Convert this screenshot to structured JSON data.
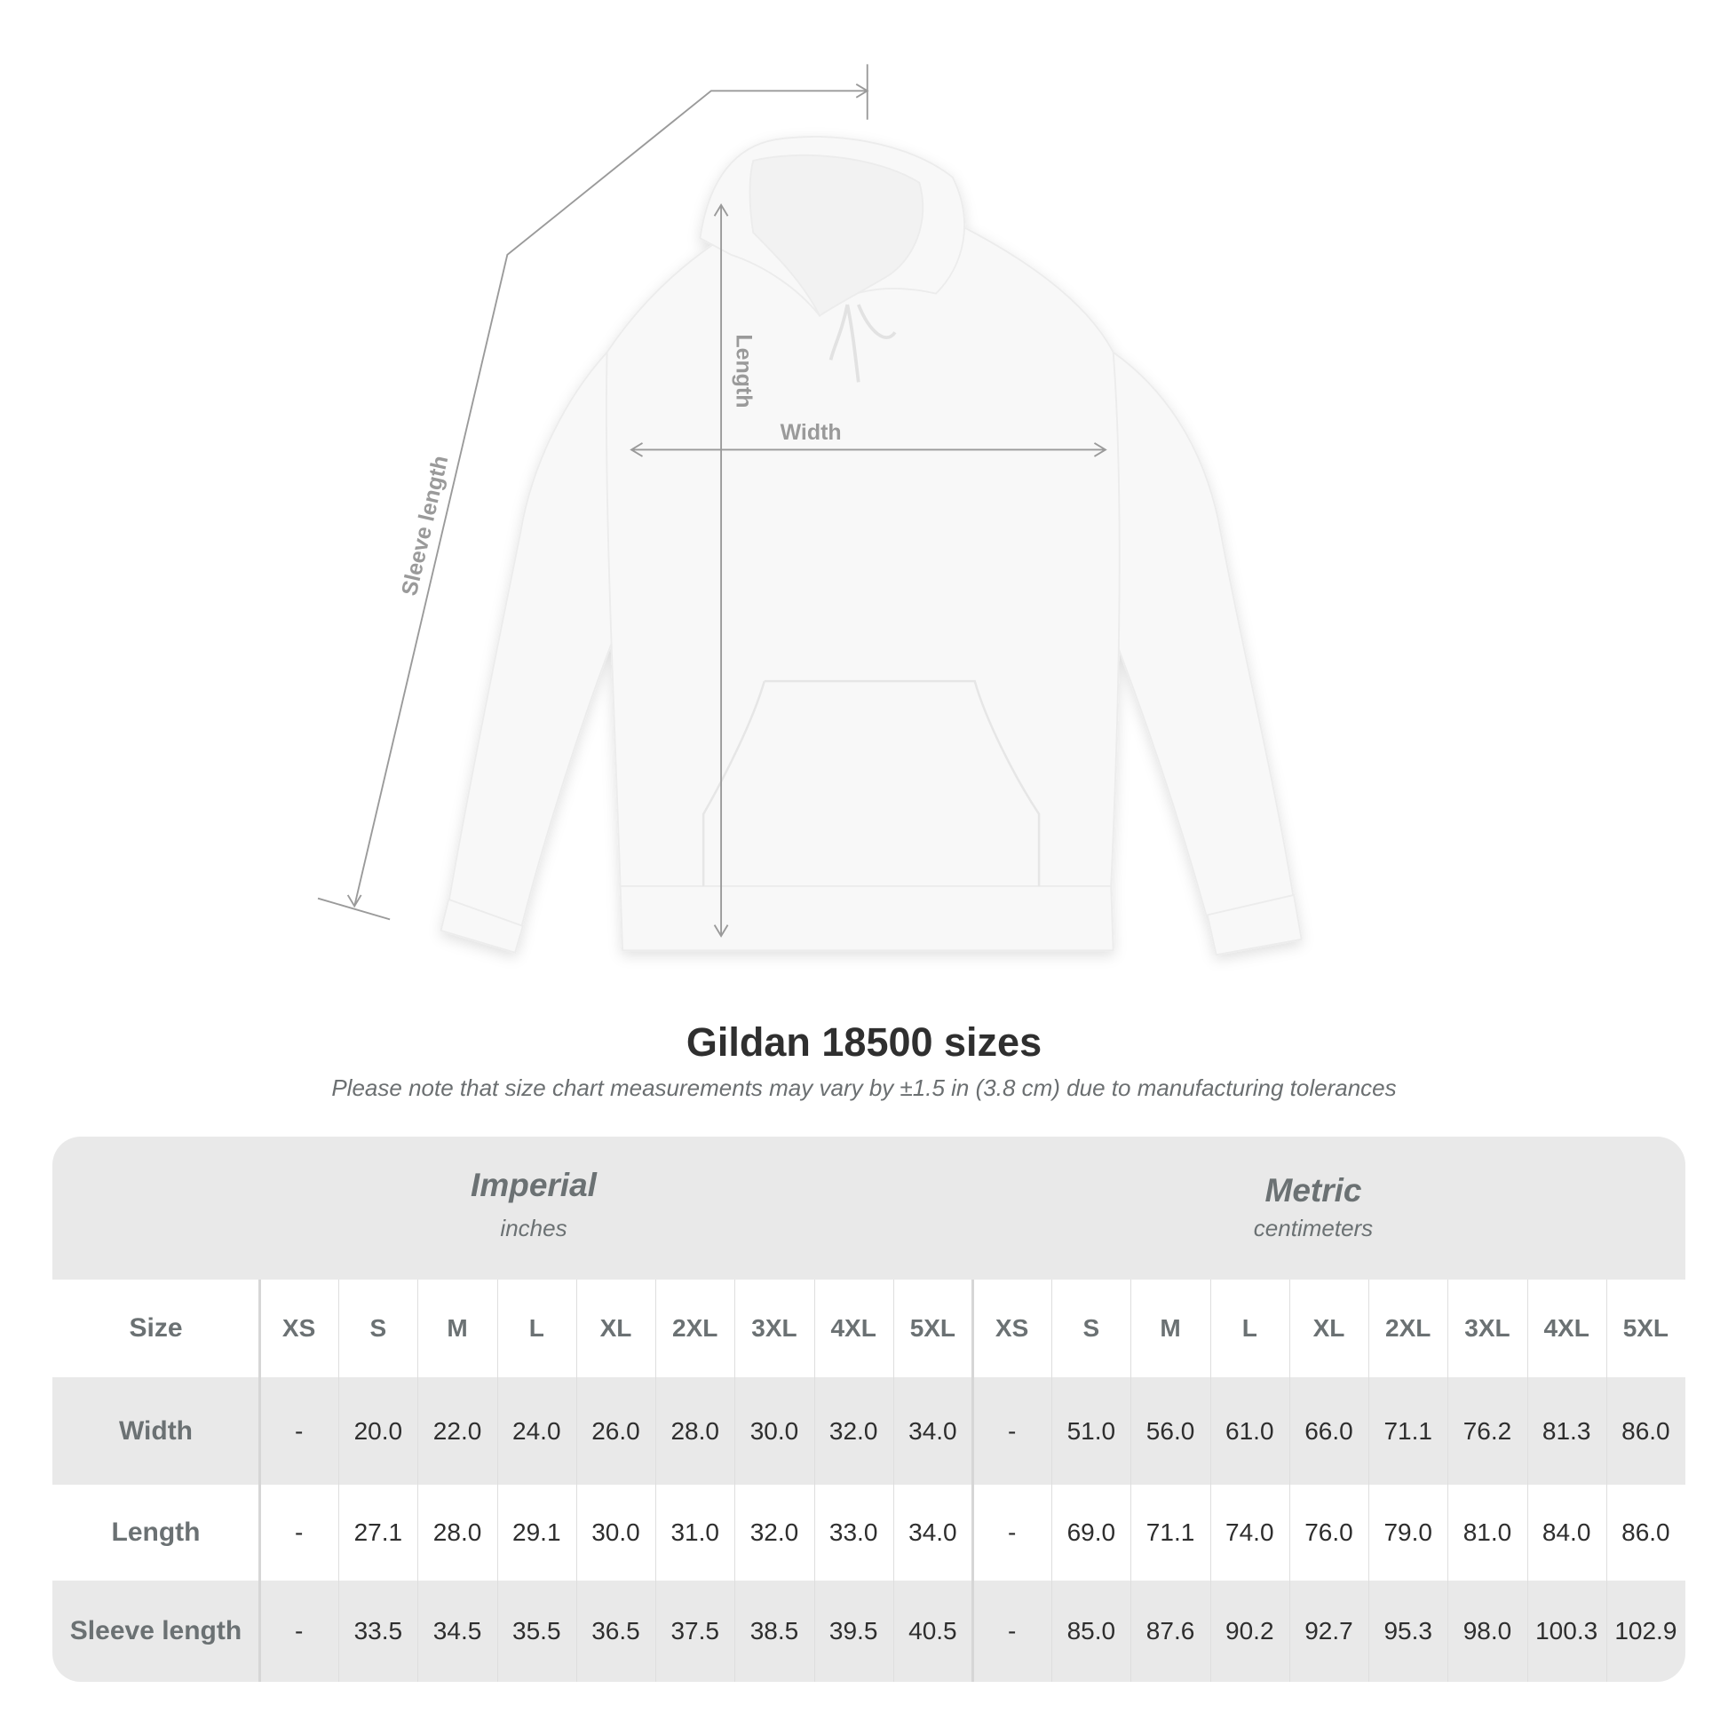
{
  "diagram": {
    "labels": {
      "sleeve_length": "Sleeve length",
      "length": "Length",
      "width": "Width"
    },
    "garment_color": "#f8f8f8",
    "line_color": "#9a9a9a"
  },
  "title": "Gildan 18500 sizes",
  "note": "Please note that size chart measurements may vary by ±1.5 in (3.8 cm) due to manufacturing tolerances",
  "table": {
    "imperial": {
      "title": "Imperial",
      "unit": "inches"
    },
    "metric": {
      "title": "Metric",
      "unit": "centimeters"
    },
    "size_label": "Size",
    "sizes": [
      "XS",
      "S",
      "M",
      "L",
      "XL",
      "2XL",
      "3XL",
      "4XL",
      "5XL"
    ],
    "rows": [
      {
        "label": "Width",
        "imperial": [
          "-",
          "20.0",
          "22.0",
          "24.0",
          "26.0",
          "28.0",
          "30.0",
          "32.0",
          "34.0"
        ],
        "metric": [
          "-",
          "51.0",
          "56.0",
          "61.0",
          "66.0",
          "71.1",
          "76.2",
          "81.3",
          "86.0"
        ]
      },
      {
        "label": "Length",
        "imperial": [
          "-",
          "27.1",
          "28.0",
          "29.1",
          "30.0",
          "31.0",
          "32.0",
          "33.0",
          "34.0"
        ],
        "metric": [
          "-",
          "69.0",
          "71.1",
          "74.0",
          "76.0",
          "79.0",
          "81.0",
          "84.0",
          "86.0"
        ]
      },
      {
        "label": "Sleeve length",
        "imperial": [
          "-",
          "33.5",
          "34.5",
          "35.5",
          "36.5",
          "37.5",
          "38.5",
          "39.5",
          "40.5"
        ],
        "metric": [
          "-",
          "85.0",
          "87.6",
          "90.2",
          "92.7",
          "95.3",
          "98.0",
          "100.3",
          "102.9"
        ]
      }
    ],
    "band_color": "#e9e9e9"
  }
}
